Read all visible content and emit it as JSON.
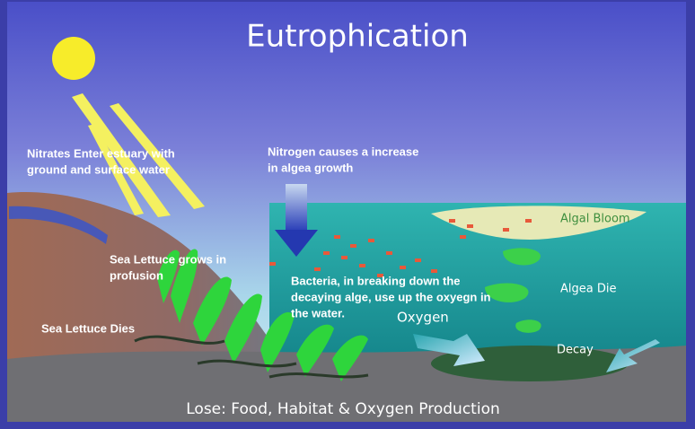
{
  "diagram": {
    "title": "Eutrophication",
    "labels": {
      "nitrates": [
        "Nitrates Enter estuary with",
        "ground and surface water"
      ],
      "nitrogen": [
        "Nitrogen causes a increase",
        "in algea growth"
      ],
      "algal_bloom": "Algal Bloom",
      "lettuce_grows": [
        "Sea Lettuce grows in",
        "profusion"
      ],
      "bacteria": [
        "Bacteria, in breaking down the",
        "decaying alge, use up the oxyegn in",
        "the water."
      ],
      "algea_die": "Algea Die",
      "oxygen": "Oxygen",
      "lettuce_dies": "Sea Lettuce Dies",
      "decay": "Decay"
    },
    "footer": "Lose: Food, Habitat & Oxygen Production"
  }
}
